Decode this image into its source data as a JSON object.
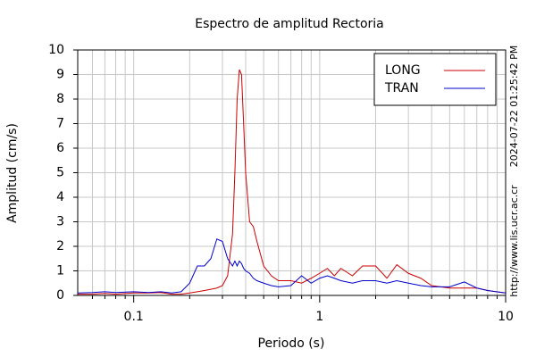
{
  "chart_data": {
    "type": "line",
    "title": "Espectro de amplitud Rectoria",
    "xlabel": "Periodo (s)",
    "ylabel": "Amplitud (cm/s)",
    "timestamp": "2024-07-22 01:25:42 PM",
    "source": "http://www.lis.ucr.ac.cr",
    "xscale": "log",
    "xlim": [
      0.05,
      10
    ],
    "xticks": [
      0.1,
      1,
      10
    ],
    "xminorticks": [
      0.06,
      0.07,
      0.08,
      0.09,
      0.2,
      0.3,
      0.4,
      0.5,
      0.6,
      0.7,
      0.8,
      0.9,
      2,
      3,
      4,
      5,
      6,
      7,
      8,
      9
    ],
    "ylim": [
      0,
      10
    ],
    "yticks": [
      0,
      1,
      2,
      3,
      4,
      5,
      6,
      7,
      8,
      9,
      10
    ],
    "grid": true,
    "legend": "upper right",
    "x": [
      0.05,
      0.06,
      0.07,
      0.08,
      0.1,
      0.12,
      0.14,
      0.16,
      0.18,
      0.2,
      0.22,
      0.24,
      0.26,
      0.28,
      0.3,
      0.32,
      0.34,
      0.35,
      0.36,
      0.37,
      0.38,
      0.39,
      0.4,
      0.42,
      0.44,
      0.46,
      0.5,
      0.55,
      0.6,
      0.7,
      0.8,
      0.9,
      1.0,
      1.1,
      1.2,
      1.3,
      1.5,
      1.7,
      2.0,
      2.3,
      2.6,
      3.0,
      3.5,
      4,
      5,
      6,
      7,
      8,
      10
    ],
    "series": [
      {
        "name": "LONG",
        "color": "#cc0000",
        "values": [
          0.05,
          0.05,
          0.08,
          0.05,
          0.1,
          0.1,
          0.12,
          0.05,
          0.05,
          0.1,
          0.15,
          0.2,
          0.25,
          0.3,
          0.4,
          0.8,
          2.5,
          5,
          8,
          9.2,
          9.0,
          7,
          5,
          3,
          2.8,
          2.2,
          1.2,
          0.8,
          0.6,
          0.6,
          0.5,
          0.7,
          0.9,
          1.1,
          0.8,
          1.1,
          0.8,
          1.2,
          1.2,
          0.7,
          1.25,
          0.9,
          0.7,
          0.4,
          0.3,
          0.3,
          0.3,
          0.2,
          0.1
        ]
      },
      {
        "name": "TRAN",
        "color": "#0000cc",
        "values": [
          0.1,
          0.12,
          0.15,
          0.12,
          0.15,
          0.12,
          0.15,
          0.1,
          0.15,
          0.5,
          1.2,
          1.2,
          1.5,
          2.3,
          2.2,
          1.5,
          1.2,
          1.4,
          1.2,
          1.4,
          1.3,
          1.1,
          1.0,
          0.9,
          0.7,
          0.6,
          0.5,
          0.4,
          0.35,
          0.4,
          0.8,
          0.5,
          0.7,
          0.8,
          0.7,
          0.6,
          0.5,
          0.6,
          0.6,
          0.5,
          0.6,
          0.5,
          0.4,
          0.35,
          0.35,
          0.55,
          0.3,
          0.2,
          0.1
        ]
      }
    ]
  }
}
